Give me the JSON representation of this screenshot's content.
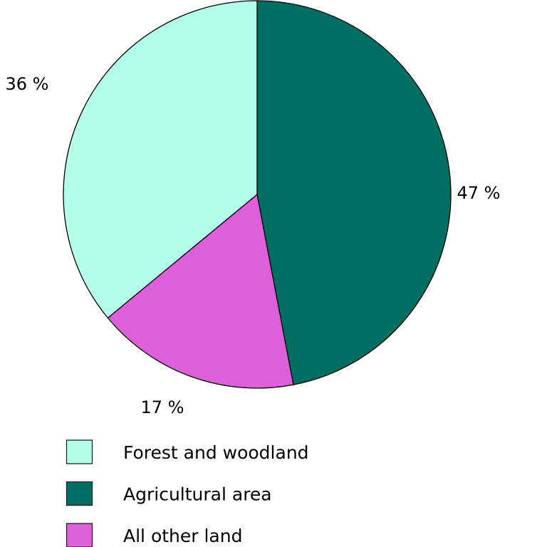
{
  "chart_data": {
    "type": "pie",
    "title": "",
    "slices": [
      {
        "label": "Agricultural area",
        "value": 47,
        "data_label": "47 %",
        "color": "#006e63"
      },
      {
        "label": "All other land",
        "value": 17,
        "data_label": "17 %",
        "color": "#dd5fd9"
      },
      {
        "label": "Forest and woodland",
        "value": 36,
        "data_label": "36 %",
        "color": "#b3ffea"
      }
    ],
    "start_angle_deg": 0,
    "direction": "clockwise",
    "legend": {
      "placement": "bottom-left",
      "entries": [
        {
          "label": "Forest and woodland",
          "color": "#b3ffea"
        },
        {
          "label": "Agricultural area",
          "color": "#006e63"
        },
        {
          "label": "All other land",
          "color": "#dd5fd9"
        }
      ]
    }
  }
}
